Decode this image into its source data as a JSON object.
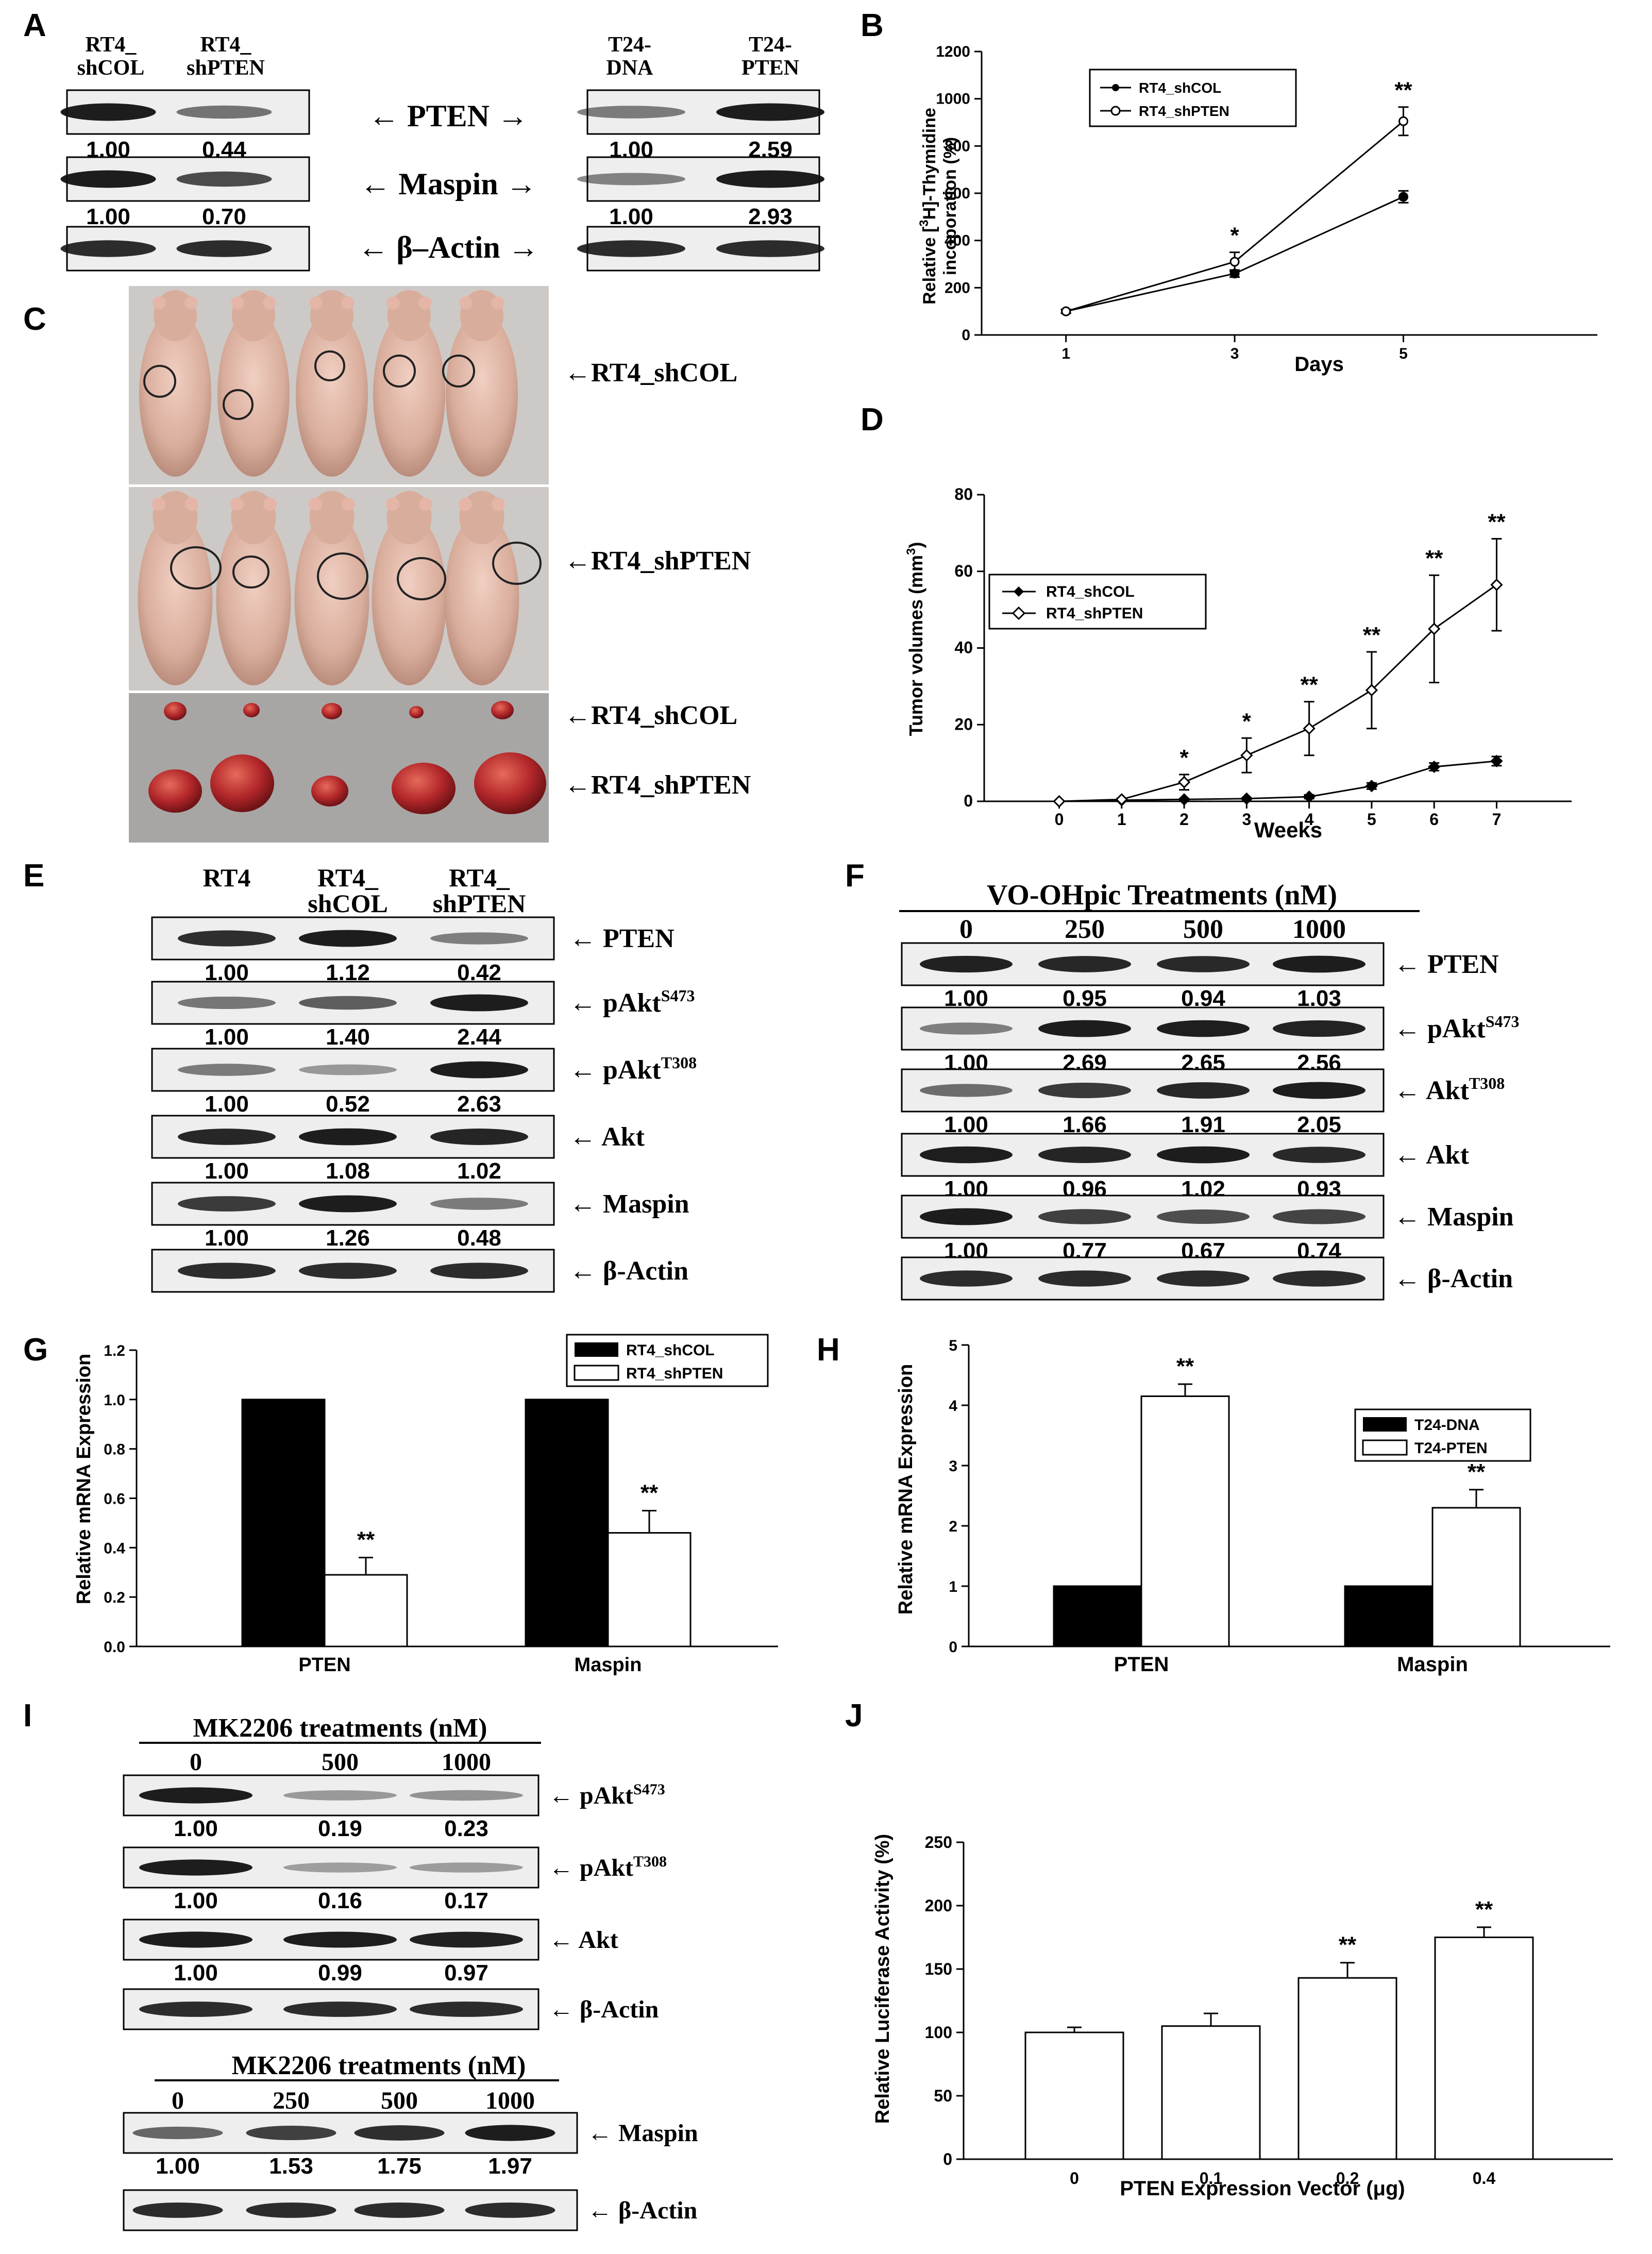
{
  "panels": {
    "A": {
      "label": "A",
      "left_lanes": [
        "RT4_",
        "shCOL",
        "RT4_",
        "shPTEN"
      ],
      "right_lanes": [
        "T24-",
        "DNA",
        "T24-",
        "PTEN"
      ],
      "proteins": [
        "PTEN",
        "Maspin",
        "β–Actin"
      ],
      "left_values": [
        [
          "1.00",
          "0.44"
        ],
        [
          "1.00",
          "0.70"
        ]
      ],
      "right_values": [
        [
          "1.00",
          "2.59"
        ],
        [
          "1.00",
          "2.93"
        ]
      ]
    },
    "B": {
      "label": "B",
      "ylabel_pre": "Relative [",
      "ylabel_sup": "3",
      "ylabel_post": "H]-Thymidine",
      "ylabel2": "incoporation (%)",
      "xlabel": "Days",
      "legend": [
        "RT4_shCOL",
        "RT4_shPTEN"
      ],
      "sig": [
        "*",
        "**"
      ]
    },
    "C": {
      "label": "C",
      "labels": [
        "←RT4_shCOL",
        "←RT4_shPTEN",
        "←RT4_shCOL",
        "←RT4_shPTEN"
      ]
    },
    "D": {
      "label": "D",
      "ylabel": "Tumor volumes (mm",
      "ylabel_sup": "3",
      "ylabel_end": ")",
      "xlabel": "Weeks",
      "legend": [
        "RT4_shCOL",
        "RT4_shPTEN"
      ],
      "sig": [
        "*",
        "*",
        "**",
        "**",
        "**",
        "**"
      ]
    },
    "E": {
      "label": "E",
      "lanes": [
        "RT4",
        "RT4_",
        "shCOL",
        "RT4_",
        "shPTEN"
      ],
      "proteins": [
        {
          "name": "PTEN",
          "sup": ""
        },
        {
          "name": "pAkt",
          "sup": "S473"
        },
        {
          "name": "pAkt",
          "sup": "T308"
        },
        {
          "name": "Akt",
          "sup": ""
        },
        {
          "name": "Maspin",
          "sup": ""
        },
        {
          "name": "β-Actin",
          "sup": ""
        }
      ],
      "values": [
        [
          "1.00",
          "1.12",
          "0.42"
        ],
        [
          "1.00",
          "1.40",
          "2.44"
        ],
        [
          "1.00",
          "0.52",
          "2.63"
        ],
        [
          "1.00",
          "1.08",
          "1.02"
        ],
        [
          "1.00",
          "1.26",
          "0.48"
        ]
      ]
    },
    "F": {
      "label": "F",
      "title": "VO-OHpic Treatments (nM)",
      "doses": [
        "0",
        "250",
        "500",
        "1000"
      ],
      "proteins": [
        {
          "name": "PTEN",
          "sup": ""
        },
        {
          "name": "pAkt",
          "sup": "S473"
        },
        {
          "name": "Akt",
          "sup": "T308"
        },
        {
          "name": "Akt",
          "sup": ""
        },
        {
          "name": "Maspin",
          "sup": ""
        },
        {
          "name": "β-Actin",
          "sup": ""
        }
      ],
      "values": [
        [
          "1.00",
          "0.95",
          "0.94",
          "1.03"
        ],
        [
          "1.00",
          "2.69",
          "2.65",
          "2.56"
        ],
        [
          "1.00",
          "1.66",
          "1.91",
          "2.05"
        ],
        [
          "1.00",
          "0.96",
          "1.02",
          "0.93"
        ],
        [
          "1.00",
          "0.77",
          "0.67",
          "0.74"
        ]
      ]
    },
    "G": {
      "label": "G",
      "ylabel": "Relative mRNA Expression",
      "legend": [
        "RT4_shCOL",
        "RT4_shPTEN"
      ],
      "sig": [
        "**",
        "**"
      ]
    },
    "H": {
      "label": "H",
      "ylabel": "Relative mRNA Expression",
      "legend": [
        "T24-DNA",
        "T24-PTEN"
      ],
      "sig": [
        "**",
        "**"
      ]
    },
    "I": {
      "label": "I",
      "title1": "MK2206 treatments (nM)",
      "doses1": [
        "0",
        "500",
        "1000"
      ],
      "proteins1": [
        {
          "name": "pAkt",
          "sup": "S473"
        },
        {
          "name": "pAkt",
          "sup": "T308"
        },
        {
          "name": "Akt",
          "sup": ""
        },
        {
          "name": "β-Actin",
          "sup": ""
        }
      ],
      "values1": [
        [
          "1.00",
          "0.19",
          "0.23"
        ],
        [
          "1.00",
          "0.16",
          "0.17"
        ],
        [
          "1.00",
          "0.99",
          "0.97"
        ]
      ],
      "title2": "MK2206 treatments (nM)",
      "doses2": [
        "0",
        "250",
        "500",
        "1000"
      ],
      "proteins2": [
        {
          "name": "Maspin",
          "sup": ""
        },
        {
          "name": "β-Actin",
          "sup": ""
        }
      ],
      "values2": [
        [
          "1.00",
          "1.53",
          "1.75",
          "1.97"
        ]
      ]
    },
    "J": {
      "label": "J",
      "ylabel": "Relative Luciferase Activity (%)",
      "xlabel": "PTEN Expression Vector (μg)",
      "sig": [
        "**",
        "**"
      ]
    }
  },
  "chart_data": [
    {
      "panel": "B",
      "type": "line",
      "x": [
        1,
        3,
        5
      ],
      "xticks": [
        "1",
        "3",
        "5"
      ],
      "ylim": [
        0,
        1200
      ],
      "yticks": [
        0,
        200,
        400,
        600,
        800,
        1000,
        1200
      ],
      "series": [
        {
          "name": "RT4_shCOL",
          "values": [
            100,
            260,
            585
          ],
          "err": [
            8,
            15,
            25
          ]
        },
        {
          "name": "RT4_shPTEN",
          "values": [
            100,
            310,
            905
          ],
          "err": [
            8,
            40,
            60
          ]
        }
      ]
    },
    {
      "panel": "D",
      "type": "line",
      "x": [
        0,
        1,
        2,
        3,
        4,
        5,
        6,
        7
      ],
      "xticks": [
        "0",
        "1",
        "2",
        "3",
        "4",
        "5",
        "6",
        "7"
      ],
      "ylim": [
        0,
        80
      ],
      "yticks": [
        0,
        20,
        40,
        60,
        80
      ],
      "series": [
        {
          "name": "RT4_shCOL",
          "values": [
            0,
            0.3,
            0.5,
            0.7,
            1.2,
            4,
            9,
            10.5
          ],
          "err": [
            0,
            0,
            0.2,
            0.2,
            0.5,
            0.8,
            1,
            1.2
          ]
        },
        {
          "name": "RT4_shPTEN",
          "values": [
            0,
            0.5,
            5,
            12,
            19,
            29,
            45,
            56.5
          ],
          "err": [
            0,
            0.3,
            2,
            4.5,
            7,
            10,
            14,
            12
          ]
        }
      ]
    },
    {
      "panel": "G",
      "type": "bar",
      "categories": [
        "PTEN",
        "Maspin"
      ],
      "ylim": [
        0,
        1.2
      ],
      "yticks": [
        "0.0",
        "0.2",
        "0.4",
        "0.6",
        "0.8",
        "1.0",
        "1.2"
      ],
      "series": [
        {
          "name": "RT4_shCOL",
          "values": [
            1.0,
            1.0
          ],
          "err": [
            0,
            0
          ],
          "color": "#000000"
        },
        {
          "name": "RT4_shPTEN",
          "values": [
            0.29,
            0.46
          ],
          "err": [
            0.07,
            0.09
          ],
          "color": "#ffffff"
        }
      ]
    },
    {
      "panel": "H",
      "type": "bar",
      "categories": [
        "PTEN",
        "Maspin"
      ],
      "ylim": [
        0,
        5
      ],
      "yticks": [
        "0",
        "1",
        "2",
        "3",
        "4",
        "5"
      ],
      "series": [
        {
          "name": "T24-DNA",
          "values": [
            1,
            1
          ],
          "err": [
            0,
            0
          ],
          "color": "#000000"
        },
        {
          "name": "T24-PTEN",
          "values": [
            4.15,
            2.3
          ],
          "err": [
            0.2,
            0.3
          ],
          "color": "#ffffff"
        }
      ]
    },
    {
      "panel": "J",
      "type": "bar",
      "categories": [
        "0",
        "0.1",
        "0.2",
        "0.4"
      ],
      "ylim": [
        0,
        250
      ],
      "yticks": [
        "0",
        "50",
        "100",
        "150",
        "200",
        "250"
      ],
      "values": [
        100,
        105,
        143,
        175
      ],
      "err": [
        4,
        10,
        12,
        8
      ]
    }
  ]
}
